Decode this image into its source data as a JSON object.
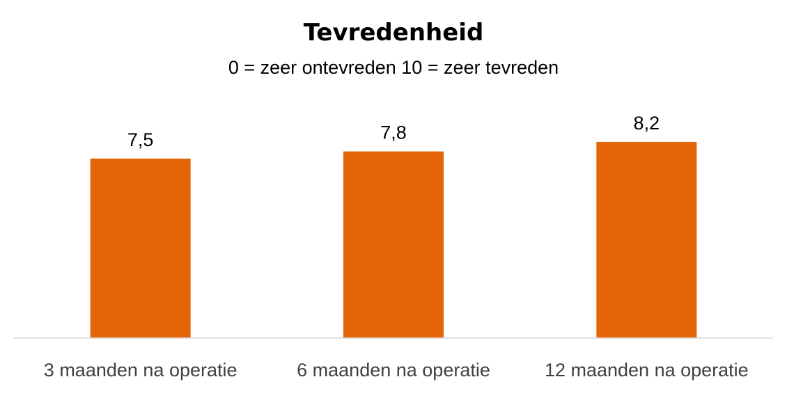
{
  "chart_data": {
    "type": "bar",
    "title": "Tevredenheid",
    "subtitle": "0 = zeer ontevreden  10 = zeer tevreden",
    "categories": [
      "3 maanden na operatie",
      "6 maanden na operatie",
      "12 maanden na operatie"
    ],
    "values": [
      7.5,
      7.8,
      8.2
    ],
    "value_labels": [
      "7,5",
      "7,8",
      "8,2"
    ],
    "ylim": [
      0,
      11
    ],
    "grid": false,
    "legend": "none",
    "bar_color": "#E46507",
    "axis_color": "#D9D9D9"
  }
}
